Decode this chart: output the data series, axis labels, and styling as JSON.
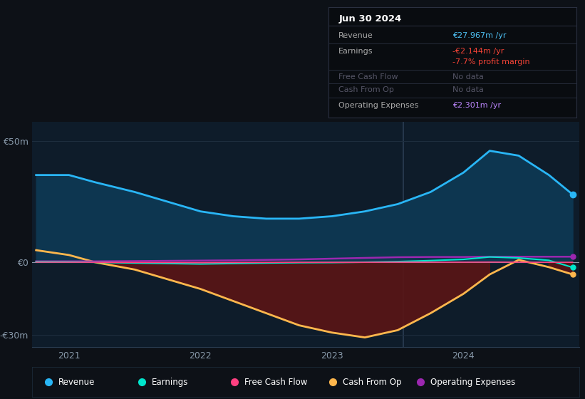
{
  "bg_color": "#0d1117",
  "chart_bg": "#0e1c2a",
  "title": "Jun 30 2024",
  "ylim": [
    -35,
    58
  ],
  "yticks": [
    -30,
    0,
    50
  ],
  "ytick_labels": [
    "-€30m",
    "€0",
    "€50m"
  ],
  "xlim_start": 2020.72,
  "xlim_end": 2024.88,
  "xticks": [
    2021,
    2022,
    2023,
    2024
  ],
  "divider_x": 2023.54,
  "revenue_color": "#29b6f6",
  "revenue_fill": "#0d3650",
  "earnings_color": "#00e5cc",
  "freecashflow_color": "#ff4081",
  "cashfromop_color": "#ffb74d",
  "cashfromop_fill_neg": "#5a1515",
  "opex_color": "#9c27b0",
  "legend_bg": "#0d1117",
  "x_data": [
    2020.75,
    2021.0,
    2021.2,
    2021.5,
    2021.75,
    2022.0,
    2022.25,
    2022.5,
    2022.75,
    2023.0,
    2023.25,
    2023.5,
    2023.75,
    2024.0,
    2024.2,
    2024.42,
    2024.65,
    2024.83
  ],
  "revenue": [
    36,
    36,
    33,
    29,
    25,
    21,
    19,
    18,
    18,
    19,
    21,
    24,
    29,
    37,
    46,
    44,
    36,
    28
  ],
  "earnings": [
    0.3,
    0.2,
    0.0,
    -0.3,
    -0.5,
    -0.7,
    -0.5,
    -0.3,
    -0.15,
    -0.1,
    0.05,
    0.3,
    0.7,
    1.2,
    2.2,
    1.8,
    0.8,
    -2.1
  ],
  "freecashflow": [
    0.1,
    0.05,
    0.0,
    -0.05,
    -0.1,
    -0.15,
    -0.1,
    -0.05,
    0.0,
    0.0,
    0.0,
    0.05,
    0.05,
    0.05,
    0.1,
    0.05,
    0.0,
    0.0
  ],
  "cashfromop": [
    5,
    3,
    0,
    -3,
    -7,
    -11,
    -16,
    -21,
    -26,
    -29,
    -31,
    -28,
    -21,
    -13,
    -5,
    1,
    -2,
    -5
  ],
  "opex": [
    0.4,
    0.4,
    0.4,
    0.5,
    0.6,
    0.7,
    0.8,
    1.0,
    1.2,
    1.5,
    1.8,
    2.1,
    2.2,
    2.2,
    2.3,
    2.3,
    2.3,
    2.3
  ],
  "info_rows": [
    {
      "label": "Revenue",
      "value": "€27.967m /yr",
      "value_color": "#4fc3f7"
    },
    {
      "label": "Earnings",
      "value": "-€2.144m /yr",
      "value_color": "#f44336"
    },
    {
      "label": "",
      "value": "-7.7% profit margin",
      "value_color": "#f44336"
    },
    {
      "label": "Free Cash Flow",
      "value": "No data",
      "value_color": "#555566"
    },
    {
      "label": "Cash From Op",
      "value": "No data",
      "value_color": "#555566"
    },
    {
      "label": "Operating Expenses",
      "value": "€2.301m /yr",
      "value_color": "#bb86fc"
    }
  ]
}
